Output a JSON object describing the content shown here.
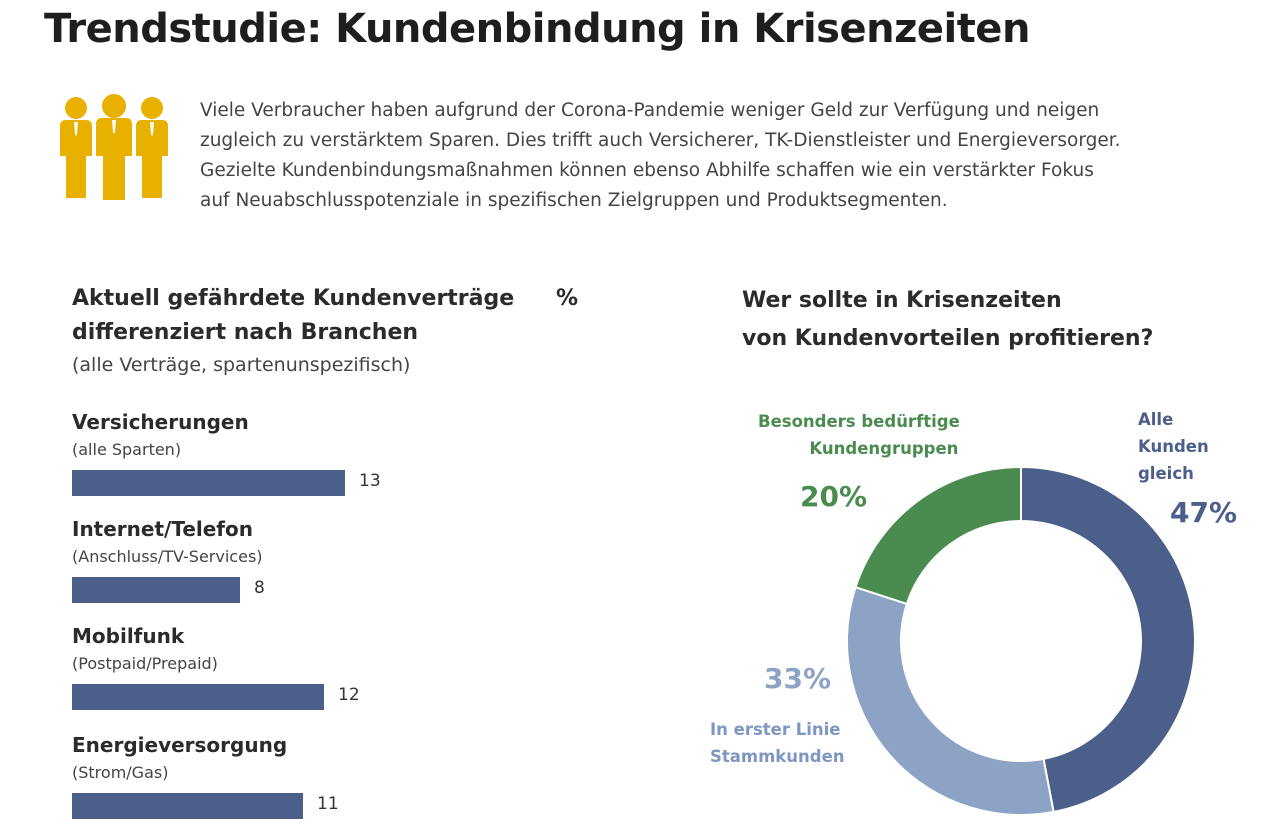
{
  "title": "Trendstudie: Kundenbindung in Krisenzeiten",
  "icon": "three-people-icon",
  "intro_lines": [
    "Viele Verbraucher haben aufgrund der Corona-Pandemie weniger Geld zur Verfügung und neigen",
    "zugleich zu verstärktem Sparen. Dies trifft auch Versicherer, TK-Dienstleister und Energieversorger.",
    "Gezielte Kundenbindungsmaßnahmen können ebenso Abhilfe schaffen wie ein verstärkter Fokus",
    "auf Neuabschlusspotenziale in spezifischen Zielgruppen und Produktsegmenten."
  ],
  "colors": {
    "icon": "#e8b100",
    "bar": "#4b5f8a",
    "alle": "#4b5f8a",
    "beduerftige": "#4a8c50",
    "stammkunden": "#8da3c6",
    "stammkunden_text": "#7f97c0"
  },
  "chart_data": [
    {
      "type": "bar",
      "orientation": "horizontal",
      "title_lines": [
        "Aktuell gefährdete Kundenverträge",
        "differenziert nach Branchen"
      ],
      "unit": "%",
      "subtitle": "(alle Verträge, spartenunspezifisch)",
      "categories": [
        "Versicherungen",
        "Internet/Telefon",
        "Mobilfunk",
        "Energieversorgung"
      ],
      "category_details": [
        "(alle Sparten)",
        "(Anschluss/TV-Services)",
        "(Postpaid/Prepaid)",
        "(Strom/Gas)"
      ],
      "values": [
        13,
        8,
        12,
        11
      ],
      "value_labels": [
        "13",
        "8",
        "12",
        "11"
      ]
    },
    {
      "type": "pie",
      "donut": true,
      "title_lines": [
        "Wer sollte in Krisenzeiten",
        "von Kundenvorteilen profitieren?"
      ],
      "categories": [
        "Alle Kunden gleich",
        "In erster Linie Stammkunden",
        "Besonders bedürftige Kundengruppen"
      ],
      "values": [
        47,
        33,
        20
      ],
      "labels": {
        "alle": [
          "Alle",
          "Kunden",
          "gleich"
        ],
        "stammkunden": [
          "In erster Linie",
          "Stammkunden"
        ],
        "beduerftige": [
          "Besonders bedürftige",
          "Kundengruppen"
        ]
      },
      "percent_labels": {
        "alle": "47%",
        "stammkunden": "33%",
        "beduerftige": "20%"
      }
    }
  ]
}
